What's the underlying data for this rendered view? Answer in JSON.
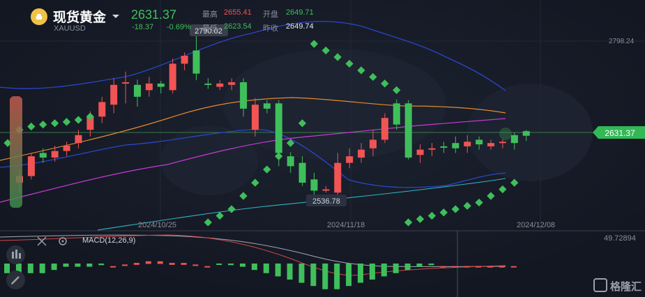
{
  "header": {
    "title": "现货黄金",
    "symbol": "XAUUSD",
    "price": "2631.37",
    "change": "-18.37",
    "change_pct": "-0.69%",
    "stats": {
      "high_label": "最高",
      "high": "2655.41",
      "open_label": "开盘",
      "open": "2649.71",
      "low_label": "最低",
      "low": "2623.54",
      "prev_close_label": "昨收",
      "prev_close": "2649.74"
    }
  },
  "chart": {
    "price_axis_label": "2798.24",
    "current_price_tag": "2631.37",
    "high_marker": "2790.02",
    "low_marker": "2536.78",
    "date_labels": [
      "2024/10/25",
      "2024/11/18",
      "2024/12/08"
    ]
  },
  "macd": {
    "label": "MACD(12,26,9)",
    "axis_value": "49.72894"
  },
  "watermark": "格隆汇",
  "colors": {
    "up": "#f05454",
    "down": "#3fbf5b",
    "background": "#131722",
    "accent": "#f0c246"
  },
  "icons": [
    "gold-coin-icon",
    "crosshair-icon",
    "settings-icon",
    "indicator-icon",
    "draw-pencil-icon"
  ],
  "chart_data": {
    "type": "candlestick",
    "y_range": [
      2520,
      2810
    ],
    "candles": [
      [
        2560,
        2570,
        2545,
        2580
      ],
      [
        2570,
        2600,
        2565,
        2605
      ],
      [
        2605,
        2598,
        2590,
        2612
      ],
      [
        2598,
        2608,
        2592,
        2616
      ],
      [
        2608,
        2616,
        2600,
        2622
      ],
      [
        2620,
        2632,
        2612,
        2640
      ],
      [
        2640,
        2660,
        2630,
        2668
      ],
      [
        2660,
        2682,
        2650,
        2690
      ],
      [
        2678,
        2708,
        2665,
        2718
      ],
      [
        2712,
        2712,
        2680,
        2728
      ],
      [
        2708,
        2690,
        2675,
        2716
      ],
      [
        2700,
        2710,
        2690,
        2720
      ],
      [
        2710,
        2705,
        2695,
        2714
      ],
      [
        2700,
        2740,
        2695,
        2748
      ],
      [
        2740,
        2752,
        2730,
        2757
      ],
      [
        2760,
        2725,
        2715,
        2790
      ],
      [
        2710,
        2708,
        2702,
        2718
      ],
      [
        2705,
        2710,
        2700,
        2715
      ],
      [
        2708,
        2712,
        2700,
        2718
      ],
      [
        2712,
        2672,
        2660,
        2718
      ],
      [
        2640,
        2678,
        2630,
        2688
      ],
      [
        2680,
        2672,
        2665,
        2685
      ],
      [
        2680,
        2605,
        2585,
        2685
      ],
      [
        2600,
        2585,
        2575,
        2606
      ],
      [
        2590,
        2560,
        2555,
        2600
      ],
      [
        2565,
        2548,
        2537,
        2575
      ],
      [
        2550,
        2550,
        2545,
        2555
      ],
      [
        2545,
        2590,
        2540,
        2605
      ],
      [
        2590,
        2600,
        2582,
        2612
      ],
      [
        2598,
        2610,
        2590,
        2620
      ],
      [
        2612,
        2625,
        2600,
        2640
      ],
      [
        2625,
        2658,
        2620,
        2665
      ],
      [
        2680,
        2648,
        2640,
        2686
      ],
      [
        2680,
        2598,
        2595,
        2685
      ],
      [
        2602,
        2610,
        2590,
        2618
      ],
      [
        2610,
        2612,
        2600,
        2620
      ],
      [
        2615,
        2614,
        2605,
        2622
      ],
      [
        2620,
        2612,
        2605,
        2630
      ],
      [
        2615,
        2622,
        2605,
        2632
      ],
      [
        2625,
        2618,
        2610,
        2630
      ],
      [
        2615,
        2620,
        2610,
        2625
      ],
      [
        2620,
        2622,
        2612,
        2626
      ],
      [
        2632,
        2620,
        2610,
        2636
      ],
      [
        2638,
        2631,
        2623,
        2640
      ]
    ],
    "psar": [
      2620,
      2640,
      2645,
      2648,
      2650,
      2652,
      2655,
      2660,
      null,
      null,
      null,
      null,
      null,
      null,
      null,
      null,
      null,
      2500,
      2510,
      2520,
      2540,
      2560,
      2580,
      2600,
      2620,
      2650,
      2770,
      2760,
      2750,
      2740,
      2730,
      2720,
      2710,
      2700,
      2500,
      2505,
      2510,
      2515,
      2520,
      2525,
      2530,
      2540,
      2550,
      2560
    ],
    "macd_hist": [
      -3,
      -4,
      -3,
      -3,
      -2,
      -1,
      -1,
      -1,
      -0.5,
      0.5,
      1,
      1.5,
      2,
      2,
      1.5,
      1.5,
      1,
      0.5,
      -0.3,
      -0.5,
      -1,
      -2,
      -3,
      -4,
      -5,
      -6,
      -7,
      -8,
      -8,
      -7,
      -6,
      -5,
      -4,
      -3,
      -2,
      -1,
      -0.5,
      0.5,
      0.5,
      0.5,
      0.5,
      0.5,
      0.5,
      0.5
    ]
  }
}
